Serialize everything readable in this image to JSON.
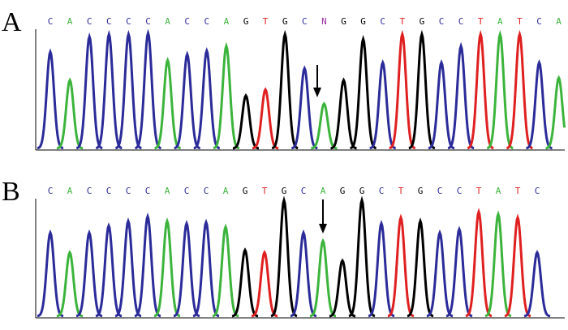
{
  "panels": [
    {
      "label": "A",
      "bases": [
        "C",
        "A",
        "C",
        "C",
        "C",
        "C",
        "A",
        "C",
        "C",
        "A",
        "G",
        "T",
        "G",
        "C",
        "N",
        "G",
        "G",
        "C",
        "T",
        "G",
        "C",
        "C",
        "T",
        "A",
        "T",
        "C",
        "A"
      ],
      "peak_heights": [
        82,
        58,
        95,
        97,
        97,
        98,
        75,
        80,
        83,
        87,
        45,
        50,
        97,
        68,
        38,
        58,
        93,
        73,
        97,
        97,
        73,
        87,
        97,
        97,
        97,
        73,
        60
      ]
    },
    {
      "label": "B",
      "bases": [
        "C",
        "A",
        "C",
        "C",
        "C",
        "C",
        "A",
        "C",
        "C",
        "A",
        "G",
        "T",
        "G",
        "C",
        "A",
        "G",
        "G",
        "C",
        "T",
        "G",
        "C",
        "C",
        "T",
        "A",
        "T",
        "C"
      ],
      "peak_heights": [
        72,
        55,
        72,
        78,
        82,
        86,
        82,
        80,
        81,
        77,
        57,
        55,
        100,
        72,
        65,
        48,
        100,
        80,
        85,
        82,
        72,
        75,
        90,
        88,
        85,
        55
      ]
    }
  ]
}
